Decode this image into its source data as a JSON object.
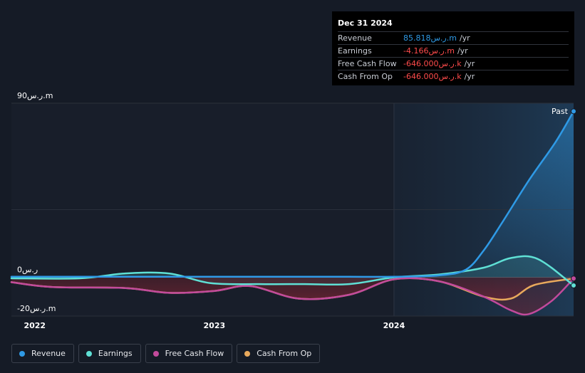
{
  "tooltip": {
    "date": "Dec 31 2024",
    "rows": [
      {
        "label": "Revenue",
        "value": "85.818ر.س.m",
        "unit": "/yr",
        "color": "#2f9ae6"
      },
      {
        "label": "Earnings",
        "value": "-4.166ر.س.m",
        "unit": "/yr",
        "color": "#ff4b4b"
      },
      {
        "label": "Free Cash Flow",
        "value": "-646.000ر.س.k",
        "unit": "/yr",
        "color": "#ff4b4b"
      },
      {
        "label": "Cash From Op",
        "value": "-646.000ر.س.k",
        "unit": "/yr",
        "color": "#ff4b4b"
      }
    ]
  },
  "legend": [
    {
      "label": "Revenue",
      "color": "#2f9ae6"
    },
    {
      "label": "Earnings",
      "color": "#5fe0d5"
    },
    {
      "label": "Free Cash Flow",
      "color": "#c24a9c"
    },
    {
      "label": "Cash From Op",
      "color": "#e8a95c"
    }
  ],
  "chart_data": {
    "type": "line",
    "ylim": [
      -20,
      90
    ],
    "y_ticks": [
      {
        "value": 90,
        "label": "90ر.س.m"
      },
      {
        "value": 0,
        "label": "0ر.س"
      },
      {
        "value": -20,
        "label": "-20ر.س.m"
      }
    ],
    "x_ticks": [
      {
        "value": 2022.0,
        "label": "2022"
      },
      {
        "value": 2023.0,
        "label": "2023"
      },
      {
        "value": 2024.0,
        "label": "2024"
      }
    ],
    "xlim": [
      2021.87,
      2025.0
    ],
    "past_label": "Past",
    "past_start": 2024.0,
    "series": [
      {
        "name": "Revenue",
        "color": "#2f9ae6",
        "x": [
          2021.87,
          2022.25,
          2022.5,
          2022.75,
          2023.0,
          2023.25,
          2023.5,
          2023.75,
          2024.0,
          2024.25,
          2024.4,
          2024.5,
          2024.6,
          2024.75,
          2024.9,
          2025.0
        ],
        "y": [
          0.3,
          0.3,
          0.3,
          0.3,
          0.3,
          0.3,
          0.3,
          0.3,
          0.3,
          1,
          4,
          14,
          28,
          50,
          70,
          85.8
        ]
      },
      {
        "name": "Earnings",
        "color": "#5fe0d5",
        "x": [
          2021.87,
          2022.25,
          2022.5,
          2022.75,
          2022.98,
          2023.25,
          2023.5,
          2023.75,
          2024.0,
          2024.25,
          2024.5,
          2024.65,
          2024.8,
          2025.0
        ],
        "y": [
          -0.5,
          -0.5,
          2,
          2,
          -3,
          -3.5,
          -3.5,
          -3.5,
          0,
          1.5,
          5,
          10,
          9.5,
          -4.2
        ]
      },
      {
        "name": "Free Cash Flow",
        "color": "#c24a9c",
        "x": [
          2021.87,
          2022.1,
          2022.5,
          2022.75,
          2023.0,
          2023.2,
          2023.47,
          2023.75,
          2024.0,
          2024.25,
          2024.5,
          2024.65,
          2024.75,
          2024.88,
          2025.0
        ],
        "y": [
          -2.5,
          -5,
          -5.5,
          -8,
          -7,
          -4.5,
          -11,
          -9,
          -1,
          -2,
          -10,
          -17,
          -19,
          -12,
          -0.6
        ]
      },
      {
        "name": "Cash From Op",
        "color": "#e8a95c",
        "x": [
          2021.87,
          2022.1,
          2022.5,
          2022.75,
          2023.0,
          2023.2,
          2023.47,
          2023.75,
          2024.0,
          2024.25,
          2024.5,
          2024.65,
          2024.78,
          2025.0
        ],
        "y": [
          -2.5,
          -5,
          -5.5,
          -8,
          -7,
          -4.5,
          -11,
          -9,
          -1,
          -2,
          -10,
          -11,
          -4,
          -0.6
        ]
      }
    ]
  }
}
